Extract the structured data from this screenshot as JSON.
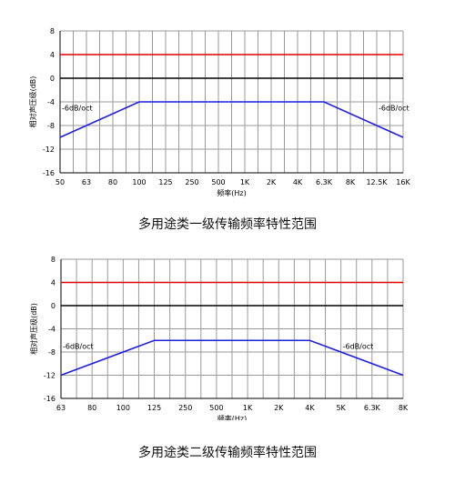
{
  "colors": {
    "upper_line": "#e00000",
    "zero_line": "#000000",
    "response_line": "#1f1fe0",
    "grid": "#9a9a9a",
    "axis": "#000000",
    "text": "#000000"
  },
  "chart_data": [
    {
      "type": "line",
      "caption": "多用途类一级传输频率特性范围",
      "ylabel": "相对声压级(dB)",
      "xlabel": "频率(Hz)",
      "ylim": [
        -16,
        8
      ],
      "yticks": [
        "8",
        "4",
        "0",
        "-4",
        "-8",
        "-12",
        "-16"
      ],
      "ytick_values": [
        8,
        4,
        0,
        -4,
        -8,
        -12,
        -16
      ],
      "categories": [
        "50",
        "63",
        "80",
        "100",
        "125",
        "250",
        "500",
        "1K",
        "2K",
        "4K",
        "6.3K",
        "8K",
        "12.5K",
        "16K"
      ],
      "minor_grid_per_interval": 1,
      "series": [
        {
          "role": "upper_limit",
          "x": [
            "50",
            "16K"
          ],
          "y": [
            4,
            4
          ]
        },
        {
          "role": "reference",
          "x": [
            "50",
            "16K"
          ],
          "y": [
            0,
            0
          ]
        },
        {
          "role": "lower_limit",
          "x": [
            "50",
            "100",
            "6.3K",
            "16K"
          ],
          "y": [
            -10,
            -4,
            -4,
            -10
          ]
        }
      ],
      "annotations": [
        {
          "text": "-6dB/oct",
          "at_category": "50",
          "y": -5
        },
        {
          "text": "-6dB/oct",
          "at_category": "12.5K",
          "y": -5
        }
      ]
    },
    {
      "type": "line",
      "caption": "多用途类二级传输频率特性范围",
      "ylabel": "相对声压级(dB)",
      "xlabel": "频率(Hz)",
      "ylim": [
        -16,
        8
      ],
      "yticks": [
        "8",
        "4",
        "0",
        "-4",
        "-8",
        "-12",
        "-16"
      ],
      "ytick_values": [
        8,
        4,
        0,
        -4,
        -8,
        -12,
        -16
      ],
      "categories": [
        "63",
        "80",
        "100",
        "125",
        "250",
        "500",
        "1K",
        "2K",
        "4K",
        "5K",
        "6.3K",
        "8K"
      ],
      "minor_grid_per_interval": 1,
      "series": [
        {
          "role": "upper_limit",
          "x": [
            "63",
            "8K"
          ],
          "y": [
            4,
            4
          ]
        },
        {
          "role": "reference",
          "x": [
            "63",
            "8K"
          ],
          "y": [
            0,
            0
          ]
        },
        {
          "role": "lower_limit",
          "x": [
            "63",
            "125",
            "4K",
            "8K"
          ],
          "y": [
            -12,
            -6,
            -6,
            -12
          ]
        }
      ],
      "annotations": [
        {
          "text": "-6dB/oct",
          "at_category": "63",
          "y": -7
        },
        {
          "text": "-6dB/oct",
          "at_category": "5K",
          "y": -7
        }
      ]
    }
  ]
}
